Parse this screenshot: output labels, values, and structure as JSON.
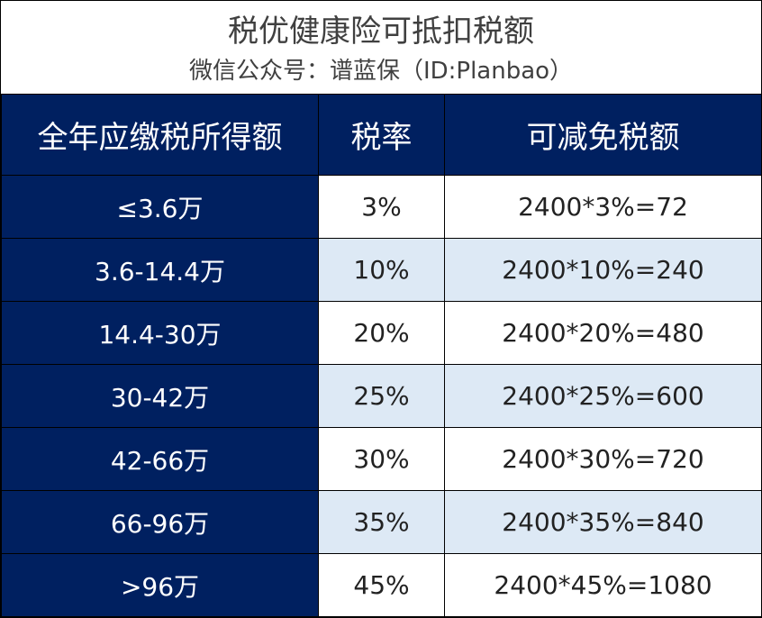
{
  "header": {
    "title": "税优健康险可抵扣税额",
    "subtitle": "微信公众号：谱蓝保（ID:Planbao）"
  },
  "table": {
    "columns": [
      "全年应缴税所得额",
      "税率",
      "可减免税额"
    ],
    "rows": [
      [
        "≤3.6万",
        "3%",
        "2400*3%=72"
      ],
      [
        "3.6-14.4万",
        "10%",
        "2400*10%=240"
      ],
      [
        "14.4-30万",
        "20%",
        "2400*20%=480"
      ],
      [
        "30-42万",
        "25%",
        "2400*25%=600"
      ],
      [
        "42-66万",
        "30%",
        "2400*30%=720"
      ],
      [
        "66-96万",
        "35%",
        "2400*35%=840"
      ],
      [
        ">96万",
        "45%",
        "2400*45%=1080"
      ]
    ]
  },
  "colors": {
    "header_bg": "#002060",
    "stripe_bg": "#dde9f5",
    "title_text": "#404040"
  }
}
